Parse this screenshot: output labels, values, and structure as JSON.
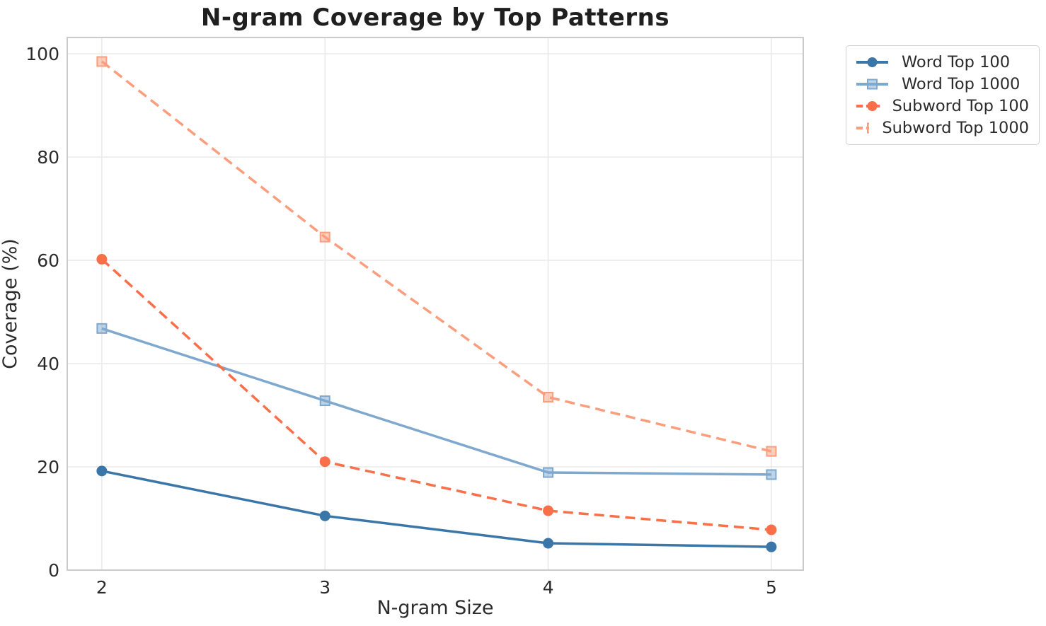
{
  "chart_data": {
    "type": "line",
    "title": "N-gram Coverage by Top Patterns",
    "xlabel": "N-gram Size",
    "ylabel": "Coverage (%)",
    "x": [
      2,
      3,
      4,
      5
    ],
    "xticks": [
      "2",
      "3",
      "4",
      "5"
    ],
    "yticks": [
      "0",
      "20",
      "40",
      "60",
      "80",
      "100"
    ],
    "ytick_values": [
      0,
      20,
      40,
      60,
      80,
      100
    ],
    "xlim": [
      1.845,
      5.143
    ],
    "ylim": [
      0,
      103.15
    ],
    "grid": true,
    "legend_position": "outside-top-right",
    "series": [
      {
        "name": "Word Top 100",
        "color": "#3b76a8",
        "marker": "circle",
        "line_style": "solid",
        "values": [
          19.2,
          10.5,
          5.2,
          4.5
        ]
      },
      {
        "name": "Word Top 1000",
        "color": "#7fa8cf",
        "marker": "square",
        "line_style": "solid",
        "values": [
          46.8,
          32.8,
          18.9,
          18.5
        ]
      },
      {
        "name": "Subword Top 100",
        "color": "#f86f4a",
        "marker": "circle",
        "line_style": "dashed",
        "values": [
          60.2,
          21.0,
          11.5,
          7.8
        ]
      },
      {
        "name": "Subword Top 1000",
        "color": "#fa9e7d",
        "marker": "square",
        "line_style": "dashed",
        "values": [
          98.5,
          64.5,
          33.5,
          23.0
        ]
      }
    ]
  },
  "style_colors": {
    "background": "#ffffff",
    "gridline": "#eaeaea",
    "spine": "#cbcbcb",
    "tick_text": "#2b2b2b",
    "title_text": "#1f1f1f",
    "legend_border": "#d2d2d2"
  }
}
